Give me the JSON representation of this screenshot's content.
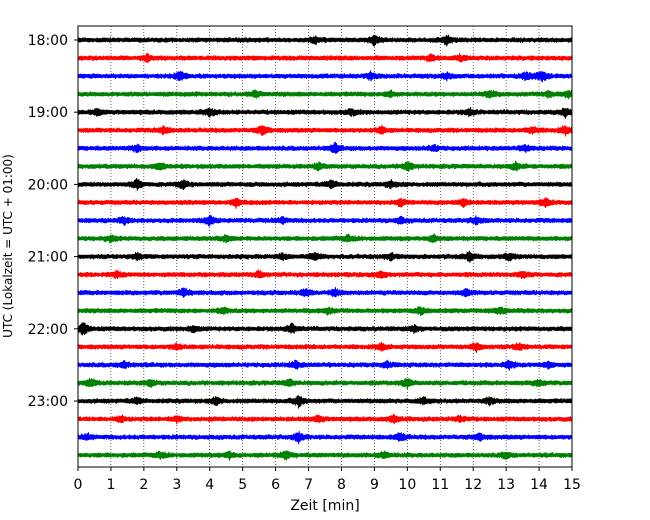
{
  "chart_data": {
    "type": "line",
    "subtype": "helicorder",
    "xlabel": "Zeit  [min]",
    "ylabel": "UTC (Lokalzeit = UTC + 01:00)",
    "xlim": [
      0,
      15
    ],
    "x_ticks": [
      "0",
      "1",
      "2",
      "3",
      "4",
      "5",
      "6",
      "7",
      "8",
      "9",
      "10",
      "11",
      "12",
      "13",
      "14",
      "15"
    ],
    "y_ticks": [
      "18:00",
      "19:00",
      "20:00",
      "21:00",
      "22:00",
      "23:00"
    ],
    "grid": "vertical-dotted",
    "line_minutes": 15,
    "start_time": "18:00",
    "color_cycle": [
      "#000000",
      "#ff0000",
      "#0000ff",
      "#008000"
    ],
    "rows": [
      {
        "time": "18:00",
        "color": "#000000",
        "events": [
          {
            "x": 7.2,
            "amp": 1.3
          },
          {
            "x": 9.0,
            "amp": 2.0
          },
          {
            "x": 11.2,
            "amp": 2.0
          }
        ]
      },
      {
        "time": "18:15",
        "color": "#ff0000",
        "events": [
          {
            "x": 2.1,
            "amp": 1.2
          },
          {
            "x": 10.7,
            "amp": 1.3
          },
          {
            "x": 11.6,
            "amp": 1.2
          }
        ]
      },
      {
        "time": "18:30",
        "color": "#0000ff",
        "events": [
          {
            "x": 3.1,
            "amp": 1.8
          },
          {
            "x": 8.9,
            "amp": 1.4
          },
          {
            "x": 11.2,
            "amp": 1.3
          },
          {
            "x": 13.6,
            "amp": 1.6
          },
          {
            "x": 14.1,
            "amp": 2.4
          }
        ]
      },
      {
        "time": "18:45",
        "color": "#008000",
        "events": [
          {
            "x": 5.4,
            "amp": 1.4
          },
          {
            "x": 9.5,
            "amp": 1.2
          },
          {
            "x": 12.5,
            "amp": 1.5
          },
          {
            "x": 14.3,
            "amp": 1.2
          },
          {
            "x": 14.9,
            "amp": 1.5
          }
        ]
      },
      {
        "time": "19:00",
        "color": "#000000",
        "events": [
          {
            "x": 0.6,
            "amp": 1.2
          },
          {
            "x": 4.0,
            "amp": 1.6
          },
          {
            "x": 8.3,
            "amp": 1.3
          },
          {
            "x": 11.9,
            "amp": 1.3
          },
          {
            "x": 14.8,
            "amp": 1.6
          }
        ]
      },
      {
        "time": "19:15",
        "color": "#ff0000",
        "events": [
          {
            "x": 2.6,
            "amp": 1.3
          },
          {
            "x": 5.6,
            "amp": 1.8
          },
          {
            "x": 9.2,
            "amp": 1.3
          },
          {
            "x": 13.8,
            "amp": 1.4
          },
          {
            "x": 14.8,
            "amp": 1.7
          }
        ]
      },
      {
        "time": "19:30",
        "color": "#0000ff",
        "events": [
          {
            "x": 1.8,
            "amp": 1.3
          },
          {
            "x": 7.8,
            "amp": 1.8
          },
          {
            "x": 10.8,
            "amp": 1.2
          },
          {
            "x": 13.6,
            "amp": 1.2
          }
        ]
      },
      {
        "time": "19:45",
        "color": "#008000",
        "events": [
          {
            "x": 2.5,
            "amp": 1.3
          },
          {
            "x": 7.3,
            "amp": 1.2
          },
          {
            "x": 10.0,
            "amp": 1.8
          },
          {
            "x": 13.3,
            "amp": 1.5
          }
        ]
      },
      {
        "time": "20:00",
        "color": "#000000",
        "events": [
          {
            "x": 1.8,
            "amp": 2.0
          },
          {
            "x": 3.2,
            "amp": 1.5
          },
          {
            "x": 7.7,
            "amp": 1.6
          },
          {
            "x": 9.5,
            "amp": 1.3
          }
        ]
      },
      {
        "time": "20:15",
        "color": "#ff0000",
        "events": [
          {
            "x": 4.8,
            "amp": 1.5
          },
          {
            "x": 9.8,
            "amp": 1.4
          },
          {
            "x": 11.7,
            "amp": 1.6
          },
          {
            "x": 14.2,
            "amp": 1.4
          }
        ]
      },
      {
        "time": "20:30",
        "color": "#0000ff",
        "events": [
          {
            "x": 1.4,
            "amp": 1.3
          },
          {
            "x": 4.0,
            "amp": 1.8
          },
          {
            "x": 6.2,
            "amp": 1.3
          },
          {
            "x": 9.8,
            "amp": 1.2
          },
          {
            "x": 12.1,
            "amp": 1.4
          }
        ]
      },
      {
        "time": "20:45",
        "color": "#008000",
        "events": [
          {
            "x": 1.0,
            "amp": 1.2
          },
          {
            "x": 4.5,
            "amp": 1.3
          },
          {
            "x": 8.2,
            "amp": 1.2
          },
          {
            "x": 10.8,
            "amp": 1.5
          }
        ]
      },
      {
        "time": "21:00",
        "color": "#000000",
        "events": [
          {
            "x": 1.8,
            "amp": 1.2
          },
          {
            "x": 6.2,
            "amp": 1.2
          },
          {
            "x": 7.2,
            "amp": 1.4
          },
          {
            "x": 9.5,
            "amp": 1.2
          },
          {
            "x": 11.9,
            "amp": 1.9
          },
          {
            "x": 13.1,
            "amp": 1.3
          }
        ]
      },
      {
        "time": "21:15",
        "color": "#ff0000",
        "events": [
          {
            "x": 1.2,
            "amp": 1.2
          },
          {
            "x": 5.5,
            "amp": 1.2
          },
          {
            "x": 9.2,
            "amp": 1.3
          },
          {
            "x": 13.5,
            "amp": 1.3
          }
        ]
      },
      {
        "time": "21:30",
        "color": "#0000ff",
        "events": [
          {
            "x": 3.2,
            "amp": 1.7
          },
          {
            "x": 6.9,
            "amp": 1.3
          },
          {
            "x": 7.8,
            "amp": 1.5
          },
          {
            "x": 11.8,
            "amp": 1.3
          }
        ]
      },
      {
        "time": "21:45",
        "color": "#008000",
        "events": [
          {
            "x": 4.4,
            "amp": 1.3
          },
          {
            "x": 7.6,
            "amp": 1.2
          },
          {
            "x": 10.4,
            "amp": 1.4
          },
          {
            "x": 12.8,
            "amp": 1.2
          }
        ]
      },
      {
        "time": "22:00",
        "color": "#000000",
        "events": [
          {
            "x": 0.15,
            "amp": 2.6
          },
          {
            "x": 3.5,
            "amp": 1.3
          },
          {
            "x": 6.5,
            "amp": 1.8
          },
          {
            "x": 10.2,
            "amp": 1.2
          }
        ]
      },
      {
        "time": "22:15",
        "color": "#ff0000",
        "events": [
          {
            "x": 3.0,
            "amp": 1.2
          },
          {
            "x": 9.2,
            "amp": 1.3
          },
          {
            "x": 12.1,
            "amp": 1.5
          },
          {
            "x": 13.4,
            "amp": 1.3
          }
        ]
      },
      {
        "time": "22:30",
        "color": "#0000ff",
        "events": [
          {
            "x": 1.4,
            "amp": 1.3
          },
          {
            "x": 6.6,
            "amp": 1.4
          },
          {
            "x": 9.4,
            "amp": 1.3
          },
          {
            "x": 13.1,
            "amp": 1.5
          },
          {
            "x": 14.3,
            "amp": 1.2
          }
        ]
      },
      {
        "time": "22:45",
        "color": "#008000",
        "events": [
          {
            "x": 0.4,
            "amp": 1.6
          },
          {
            "x": 2.2,
            "amp": 1.3
          },
          {
            "x": 6.4,
            "amp": 1.3
          },
          {
            "x": 10.0,
            "amp": 1.8
          },
          {
            "x": 14.0,
            "amp": 1.3
          }
        ]
      },
      {
        "time": "23:00",
        "color": "#000000",
        "events": [
          {
            "x": 1.8,
            "amp": 1.2
          },
          {
            "x": 4.2,
            "amp": 1.3
          },
          {
            "x": 6.7,
            "amp": 2.1
          },
          {
            "x": 10.5,
            "amp": 1.2
          },
          {
            "x": 12.5,
            "amp": 1.2
          }
        ]
      },
      {
        "time": "23:15",
        "color": "#ff0000",
        "events": [
          {
            "x": 1.3,
            "amp": 1.2
          },
          {
            "x": 3.0,
            "amp": 1.2
          },
          {
            "x": 7.3,
            "amp": 1.2
          },
          {
            "x": 9.6,
            "amp": 1.3
          },
          {
            "x": 11.6,
            "amp": 1.2
          }
        ]
      },
      {
        "time": "23:30",
        "color": "#0000ff",
        "events": [
          {
            "x": 0.3,
            "amp": 1.2
          },
          {
            "x": 6.7,
            "amp": 1.9
          },
          {
            "x": 9.8,
            "amp": 1.7
          },
          {
            "x": 12.2,
            "amp": 1.2
          }
        ]
      },
      {
        "time": "23:45",
        "color": "#008000",
        "events": [
          {
            "x": 2.5,
            "amp": 1.2
          },
          {
            "x": 4.6,
            "amp": 1.2
          },
          {
            "x": 6.3,
            "amp": 1.6
          },
          {
            "x": 9.3,
            "amp": 1.2
          },
          {
            "x": 13.0,
            "amp": 1.2
          }
        ]
      }
    ]
  }
}
